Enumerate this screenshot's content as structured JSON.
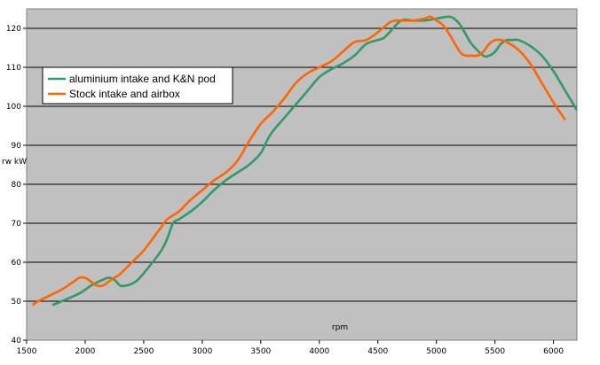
{
  "chart_data": {
    "type": "line",
    "title": "",
    "xlabel": "rpm",
    "ylabel": "rw kW",
    "xlim": [
      1500,
      6200
    ],
    "ylim": [
      40,
      125
    ],
    "x_ticks": [
      1500,
      2000,
      2500,
      3000,
      3500,
      4000,
      4500,
      5000,
      5500,
      6000
    ],
    "y_ticks": [
      40,
      50,
      60,
      70,
      80,
      90,
      100,
      110,
      120
    ],
    "grid": "horizontal",
    "legend_position": "top-left",
    "plot_background": "#c0c0c0",
    "series": [
      {
        "name": "aluminium intake and K&N pod",
        "color": "#339966",
        "x": [
          1720,
          1800,
          1950,
          2050,
          2150,
          2200,
          2250,
          2300,
          2350,
          2400,
          2450,
          2550,
          2650,
          2700,
          2750,
          2800,
          2900,
          3000,
          3100,
          3200,
          3300,
          3400,
          3500,
          3550,
          3600,
          3700,
          3800,
          3900,
          4000,
          4100,
          4200,
          4300,
          4400,
          4500,
          4550,
          4600,
          4700,
          4800,
          4900,
          5000,
          5100,
          5150,
          5200,
          5250,
          5300,
          5400,
          5450,
          5500,
          5550,
          5600,
          5650,
          5700,
          5800,
          5900,
          6000,
          6100,
          6200
        ],
        "values": [
          49,
          50,
          52,
          54,
          55.5,
          56,
          55.5,
          54,
          54,
          54.5,
          55.5,
          59,
          63,
          66,
          70,
          71,
          73,
          75.5,
          78.5,
          81,
          83,
          85,
          88,
          91,
          93.5,
          97,
          100.5,
          104,
          107.5,
          109.5,
          111,
          113,
          116,
          117,
          117.5,
          119,
          122,
          122,
          122,
          122.5,
          123,
          122.5,
          121,
          118.5,
          116,
          113,
          113,
          114,
          116,
          117,
          117,
          117,
          115.5,
          113,
          109,
          104,
          99
        ]
      },
      {
        "name": "Stock intake and airbox",
        "color": "#ff6600",
        "x": [
          1550,
          1600,
          1700,
          1800,
          1900,
          1950,
          2000,
          2050,
          2100,
          2150,
          2200,
          2250,
          2300,
          2400,
          2500,
          2600,
          2650,
          2700,
          2800,
          2900,
          3000,
          3100,
          3200,
          3300,
          3400,
          3500,
          3600,
          3700,
          3800,
          3900,
          4000,
          4100,
          4200,
          4300,
          4400,
          4500,
          4600,
          4650,
          4700,
          4800,
          4900,
          4950,
          5000,
          5050,
          5100,
          5200,
          5250,
          5300,
          5350,
          5400,
          5450,
          5500,
          5550,
          5600,
          5700,
          5800,
          5900,
          6000,
          6100
        ],
        "values": [
          49,
          50,
          51.5,
          53,
          55,
          56,
          56,
          55,
          54,
          54,
          55,
          56,
          57,
          60,
          63,
          67,
          69,
          71,
          73,
          76,
          78.5,
          81,
          83,
          86,
          91,
          95.5,
          98.5,
          102,
          106,
          108.5,
          110,
          111.5,
          114,
          116.5,
          117,
          119,
          121.5,
          122,
          122,
          122,
          122.5,
          123,
          122,
          121,
          119,
          114,
          113,
          113,
          113,
          114,
          116,
          117,
          117,
          116.5,
          114.5,
          111,
          106,
          101,
          96.5
        ]
      }
    ]
  }
}
